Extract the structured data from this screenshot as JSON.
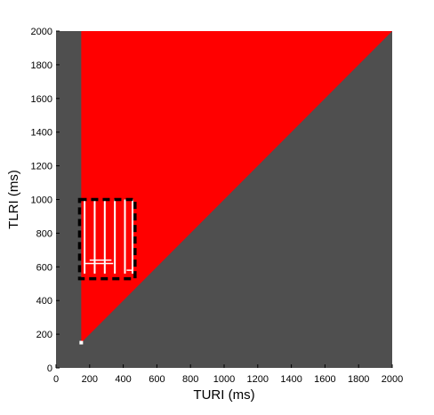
{
  "chart_data": {
    "type": "heatmap",
    "title": "",
    "xlabel": "TURI (ms)",
    "ylabel": "TLRI (ms)",
    "xlim": [
      0,
      2000
    ],
    "ylim": [
      0,
      2000
    ],
    "xticks": [
      0,
      200,
      400,
      600,
      800,
      1000,
      1200,
      1400,
      1600,
      1800,
      2000
    ],
    "yticks": [
      0,
      200,
      400,
      600,
      800,
      1000,
      1200,
      1400,
      1600,
      1800,
      2000
    ],
    "grid": false,
    "colors": {
      "background_region": "#4f4f4f",
      "feasible_region": "#ff0000",
      "highlight": "#ffffff",
      "box": "#000000"
    },
    "regions": [
      {
        "name": "feasible",
        "color": "#ff0000",
        "turi_min": 150,
        "upper": 2000,
        "lower_is_diagonal": true
      }
    ],
    "highlight_box": {
      "x": [
        140,
        470
      ],
      "y": [
        530,
        1000
      ]
    },
    "white_lines": {
      "vertical": [
        {
          "x": 170,
          "y": [
            560,
            1000
          ]
        },
        {
          "x": 230,
          "y": [
            560,
            1000
          ]
        },
        {
          "x": 290,
          "y": [
            560,
            1000
          ]
        },
        {
          "x": 350,
          "y": [
            560,
            1000
          ]
        },
        {
          "x": 410,
          "y": [
            560,
            1000
          ]
        },
        {
          "x": 455,
          "y": [
            560,
            1000
          ]
        }
      ],
      "segments": [
        {
          "x": [
            170,
            340
          ],
          "y": [
            620,
            620
          ]
        },
        {
          "x": [
            200,
            330
          ],
          "y": [
            640,
            640
          ]
        },
        {
          "x": [
            420,
            460
          ],
          "y": [
            580,
            580
          ]
        }
      ]
    },
    "white_point": {
      "x": 150,
      "y": 150
    }
  }
}
